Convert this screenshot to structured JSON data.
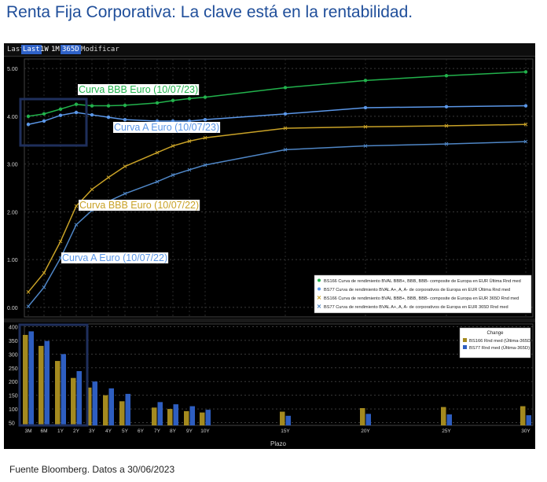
{
  "title": "Renta Fija Corporativa: La clave está en la rentabilidad.",
  "source": "Fuente Bloomberg. Datos a 30/06/2023",
  "toolbar": {
    "items": [
      "Last",
      "Last",
      "1W",
      "1M",
      "365D",
      "Modificar"
    ]
  },
  "colors": {
    "green": "#22b24c",
    "blue": "#5b97e8",
    "gold": "#c9a227",
    "steelblue": "#4f86c6",
    "bar_gold": "#a48a1f",
    "bar_blue": "#2e5ec0",
    "highlight_box": "#1f2f5c"
  },
  "chart_data": [
    {
      "type": "line",
      "x": [
        "3M",
        "6M",
        "1Y",
        "2Y",
        "3Y",
        "4Y",
        "5Y",
        "7Y",
        "8Y",
        "9Y",
        "10Y",
        "15Y",
        "20Y",
        "25Y",
        "30Y"
      ],
      "ylim": [
        -0.2,
        5.2
      ],
      "yticks": [
        "0.00",
        "1.00",
        "2.00",
        "3.00",
        "4.00",
        "5.00"
      ],
      "series": [
        {
          "name": "BS166 Curva de rendimiento BVAL BBB+, BBB, BBB- composite de Europa en EUR Última Rnd med",
          "color": "green",
          "marker": "dot",
          "values": [
            4.0,
            4.05,
            4.15,
            4.25,
            4.22,
            4.22,
            4.23,
            4.28,
            4.33,
            4.37,
            4.4,
            4.6,
            4.75,
            4.85,
            4.93
          ]
        },
        {
          "name": "BS77 Curva de rendimiento BVAL A+, A, A- de corporativos de Europa en EUR Última Rnd med",
          "color": "blue",
          "marker": "dot",
          "values": [
            3.83,
            3.9,
            4.02,
            4.08,
            4.03,
            3.98,
            3.93,
            3.9,
            3.9,
            3.9,
            3.93,
            4.05,
            4.18,
            4.2,
            4.22
          ]
        },
        {
          "name": "BS166 Curva de rendimiento BVAL BBB+, BBB, BBB- composite de Europa en EUR 365D Rnd med",
          "color": "gold",
          "marker": "x",
          "values": [
            0.32,
            0.72,
            1.38,
            2.12,
            2.47,
            2.72,
            2.95,
            3.24,
            3.38,
            3.48,
            3.55,
            3.75,
            3.78,
            3.8,
            3.83
          ]
        },
        {
          "name": "BS77 Curva de rendimiento BVAL A+, A, A- de corporativos de Europa en EUR 365D Rnd med",
          "color": "steelblue",
          "marker": "x",
          "values": [
            0.02,
            0.42,
            1.03,
            1.73,
            2.03,
            2.22,
            2.38,
            2.63,
            2.77,
            2.88,
            2.98,
            3.3,
            3.38,
            3.42,
            3.47
          ]
        }
      ],
      "annotations": [
        {
          "text": "Curva BBB Euro (10/07/23)",
          "color": "green"
        },
        {
          "text": "Curva A Euro (10/07/23)",
          "color": "blue"
        },
        {
          "text": "Curva BBB Euro (10/07/22)",
          "color": "gold"
        },
        {
          "text": "Curva A Euro (10/07/22)",
          "color": "blue"
        }
      ]
    },
    {
      "type": "bar",
      "xlabel": "Plazo",
      "categories": [
        "3M",
        "6M",
        "1Y",
        "2Y",
        "3Y",
        "4Y",
        "5Y",
        "6Y",
        "7Y",
        "8Y",
        "9Y",
        "10Y",
        "15Y",
        "20Y",
        "25Y",
        "30Y"
      ],
      "ylim": [
        40,
        410
      ],
      "yticks": [
        "50",
        "100",
        "150",
        "200",
        "250",
        "300",
        "350",
        "400"
      ],
      "legend_title": "Change",
      "series": [
        {
          "name": "BS166 Rnd med (Última-365D)",
          "color": "bar_gold",
          "values": [
            370,
            330,
            275,
            213,
            178,
            150,
            128,
            null,
            105,
            100,
            92,
            87,
            90,
            103,
            107,
            110
          ]
        },
        {
          "name": "BS77 Rnd med (Última-365D)",
          "color": "bar_blue",
          "values": [
            383,
            348,
            300,
            238,
            200,
            175,
            155,
            null,
            125,
            117,
            110,
            97,
            75,
            82,
            80,
            77
          ]
        }
      ]
    }
  ]
}
